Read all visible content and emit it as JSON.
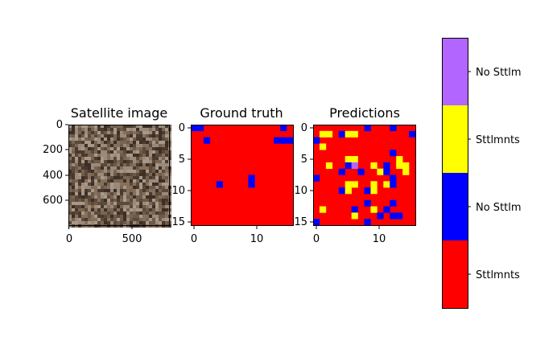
{
  "chart_data": [
    {
      "type": "image",
      "title": "Satellite image",
      "xticks": [
        "0",
        "500"
      ],
      "yticks": [
        "0",
        "200",
        "400",
        "600"
      ],
      "x_extent": [
        0,
        800
      ],
      "y_extent": [
        0,
        800
      ],
      "tick_x_values": [
        0,
        500
      ],
      "tick_y_values": [
        0,
        200,
        400,
        600
      ],
      "texture_colors": [
        "#5b4a3a",
        "#7a6552",
        "#3b2f26",
        "#9a8a7b",
        "#6e5a49",
        "#a89888",
        "#4a3a2e",
        "#86705c"
      ]
    },
    {
      "type": "heatmap",
      "title": "Ground truth",
      "grid_size": 16,
      "xticks": [
        "0",
        "10"
      ],
      "yticks": [
        "0",
        "5",
        "10",
        "15"
      ],
      "tick_x_values": [
        0,
        10
      ],
      "tick_y_values": [
        0,
        5,
        10,
        15
      ],
      "background_class": 0,
      "cells": [
        [
          0,
          0,
          1
        ],
        [
          0,
          1,
          1
        ],
        [
          0,
          14,
          1
        ],
        [
          2,
          2,
          1
        ],
        [
          2,
          13,
          1
        ],
        [
          2,
          14,
          1
        ],
        [
          2,
          15,
          1
        ],
        [
          8,
          9,
          1
        ],
        [
          9,
          4,
          1
        ],
        [
          9,
          9,
          1
        ]
      ]
    },
    {
      "type": "heatmap",
      "title": "Predictions",
      "grid_size": 16,
      "xticks": [
        "0",
        "10"
      ],
      "yticks": [
        "0",
        "5",
        "10",
        "15"
      ],
      "tick_x_values": [
        0,
        10
      ],
      "tick_y_values": [
        0,
        5,
        10,
        15
      ],
      "background_class": 0,
      "cells": [
        [
          0,
          8,
          1
        ],
        [
          0,
          12,
          1
        ],
        [
          1,
          1,
          2
        ],
        [
          1,
          2,
          2
        ],
        [
          1,
          4,
          1
        ],
        [
          1,
          5,
          2
        ],
        [
          1,
          6,
          2
        ],
        [
          1,
          15,
          1
        ],
        [
          2,
          0,
          1
        ],
        [
          3,
          1,
          2
        ],
        [
          4,
          12,
          1
        ],
        [
          5,
          5,
          2
        ],
        [
          5,
          6,
          2
        ],
        [
          5,
          13,
          2
        ],
        [
          6,
          2,
          2
        ],
        [
          6,
          5,
          1
        ],
        [
          6,
          6,
          3
        ],
        [
          6,
          9,
          2
        ],
        [
          6,
          11,
          1
        ],
        [
          6,
          13,
          2
        ],
        [
          6,
          14,
          2
        ],
        [
          7,
          4,
          1
        ],
        [
          7,
          7,
          1
        ],
        [
          7,
          10,
          2
        ],
        [
          7,
          11,
          1
        ],
        [
          7,
          14,
          2
        ],
        [
          8,
          0,
          1
        ],
        [
          8,
          12,
          1
        ],
        [
          9,
          5,
          2
        ],
        [
          9,
          6,
          2
        ],
        [
          9,
          9,
          2
        ],
        [
          9,
          11,
          2
        ],
        [
          9,
          12,
          1
        ],
        [
          10,
          4,
          1
        ],
        [
          10,
          5,
          2
        ],
        [
          10,
          8,
          1
        ],
        [
          10,
          9,
          2
        ],
        [
          12,
          8,
          1
        ],
        [
          12,
          12,
          1
        ],
        [
          13,
          1,
          2
        ],
        [
          13,
          6,
          1
        ],
        [
          13,
          9,
          2
        ],
        [
          13,
          11,
          1
        ],
        [
          14,
          6,
          2
        ],
        [
          14,
          10,
          1
        ],
        [
          14,
          12,
          1
        ],
        [
          14,
          13,
          1
        ],
        [
          15,
          0,
          1
        ],
        [
          15,
          8,
          1
        ]
      ]
    }
  ],
  "colorbar": {
    "classes": [
      {
        "label": "Sttlmnts",
        "color": "#ff0000"
      },
      {
        "label": "No Sttlm",
        "color": "#0000ff"
      },
      {
        "label": "Sttlmnts",
        "color": "#ffff00"
      },
      {
        "label": "No Sttlm",
        "color": "#b266ff"
      }
    ]
  }
}
